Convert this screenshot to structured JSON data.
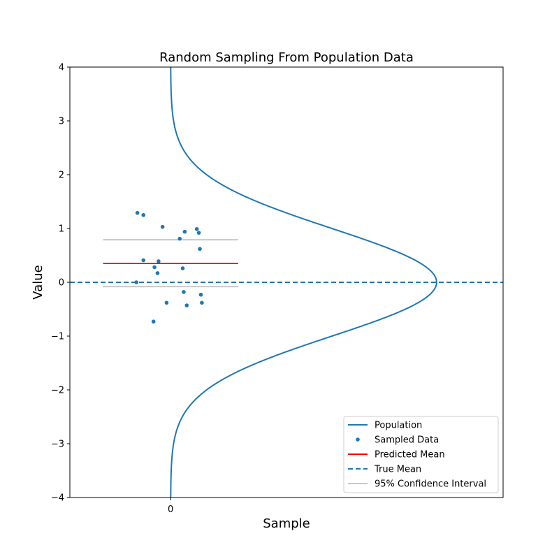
{
  "chart_data": {
    "type": "scatter",
    "title": "Random Sampling From Population Data",
    "xlabel": "Sample",
    "ylabel": "Value",
    "xlim": [
      -1.0,
      3.3
    ],
    "ylim": [
      -4,
      4
    ],
    "x_ticks": [
      {
        "value": 0,
        "label": "0"
      }
    ],
    "y_ticks": [
      {
        "value": -4,
        "label": "−4"
      },
      {
        "value": -3,
        "label": "−3"
      },
      {
        "value": -2,
        "label": "−2"
      },
      {
        "value": -1,
        "label": "−1"
      },
      {
        "value": 0,
        "label": "0"
      },
      {
        "value": 1,
        "label": "1"
      },
      {
        "value": 2,
        "label": "2"
      },
      {
        "value": 3,
        "label": "3"
      },
      {
        "value": 4,
        "label": "4"
      }
    ],
    "grid": false,
    "legend_position": "lower-right",
    "population": {
      "name": "Population",
      "color": "#1f77b4",
      "mean": 0,
      "std": 1,
      "density_peak_x": 2.64
    },
    "sampled_data": {
      "name": "Sampled Data",
      "color": "#1f77b4",
      "points": [
        {
          "x": -0.33,
          "y": 1.29
        },
        {
          "x": -0.27,
          "y": 1.25
        },
        {
          "x": -0.08,
          "y": 1.03
        },
        {
          "x": 0.14,
          "y": 0.94
        },
        {
          "x": 0.26,
          "y": 0.99
        },
        {
          "x": 0.28,
          "y": 0.92
        },
        {
          "x": 0.09,
          "y": 0.81
        },
        {
          "x": 0.29,
          "y": 0.62
        },
        {
          "x": -0.27,
          "y": 0.41
        },
        {
          "x": -0.12,
          "y": 0.39
        },
        {
          "x": -0.16,
          "y": 0.28
        },
        {
          "x": 0.12,
          "y": 0.26
        },
        {
          "x": -0.13,
          "y": 0.17
        },
        {
          "x": -0.34,
          "y": 0.0
        },
        {
          "x": 0.13,
          "y": -0.18
        },
        {
          "x": 0.3,
          "y": -0.23
        },
        {
          "x": -0.04,
          "y": -0.38
        },
        {
          "x": 0.31,
          "y": -0.38
        },
        {
          "x": 0.16,
          "y": -0.43
        },
        {
          "x": -0.17,
          "y": -0.73
        }
      ]
    },
    "predicted_mean": {
      "name": "Predicted Mean",
      "color": "#ff0000",
      "value": 0.35,
      "x_range": [
        -0.67,
        0.67
      ]
    },
    "true_mean": {
      "name": "True Mean",
      "color": "#1f77b4",
      "value": 0
    },
    "confidence_interval": {
      "name": "95% Confidence Interval",
      "color": "#c8c8c8",
      "lower": -0.08,
      "upper": 0.79,
      "x_range": [
        -0.67,
        0.67
      ]
    },
    "legend": [
      {
        "label": "Population",
        "kind": "line",
        "color": "#1f77b4"
      },
      {
        "label": "Sampled Data",
        "kind": "dot",
        "color": "#1f77b4"
      },
      {
        "label": "Predicted Mean",
        "kind": "line",
        "color": "#ff0000"
      },
      {
        "label": "True Mean",
        "kind": "dashed",
        "color": "#1f77b4"
      },
      {
        "label": "95% Confidence Interval",
        "kind": "line",
        "color": "#c8c8c8"
      }
    ]
  }
}
